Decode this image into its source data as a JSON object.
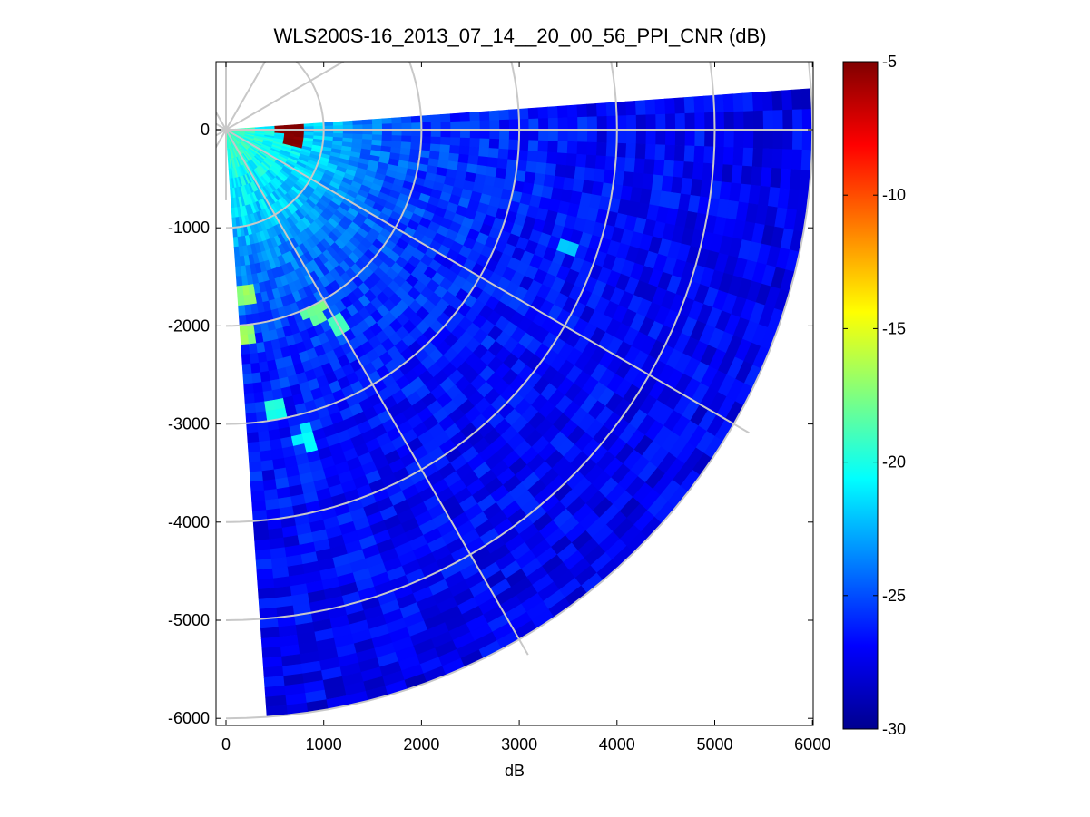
{
  "chart_data": {
    "type": "heatmap",
    "subtype": "polar-ppi-scan",
    "title": "WLS200S-16_2013_07_14__20_00_56_PPI_CNR (dB)",
    "xlabel": "dB",
    "ylabel": "",
    "xlim": [
      0,
      6000
    ],
    "ylim": [
      -6000,
      0
    ],
    "x_ticks": [
      0,
      1000,
      2000,
      3000,
      4000,
      5000,
      6000
    ],
    "y_ticks": [
      0,
      -1000,
      -2000,
      -3000,
      -4000,
      -5000,
      -6000
    ],
    "sector": {
      "azimuth_start_deg_from_north": 86,
      "azimuth_end_deg_from_north": 176,
      "max_range": 6000
    },
    "grid": true,
    "polar_grid": {
      "range_rings": [
        1000,
        2000,
        3000,
        4000,
        5000,
        6000
      ],
      "azimuth_lines_deg_from_north": [
        0,
        30,
        60,
        90,
        120,
        150
      ]
    },
    "colorbar": {
      "colormap": "jet",
      "range": [
        -30,
        -5
      ],
      "ticks": [
        -5,
        -10,
        -15,
        -20,
        -25,
        -30
      ],
      "location": "right"
    },
    "value_profile": [
      {
        "range": 100,
        "value": -19
      },
      {
        "range": 500,
        "value": -20.5
      },
      {
        "range": 1000,
        "value": -22
      },
      {
        "range": 1500,
        "value": -24
      },
      {
        "range": 2000,
        "value": -25.3
      },
      {
        "range": 3000,
        "value": -26.3
      },
      {
        "range": 4000,
        "value": -26.8
      },
      {
        "range": 5000,
        "value": -27
      },
      {
        "range": 6000,
        "value": -27.3
      }
    ],
    "hotspots": [
      {
        "x": 650,
        "y": 0,
        "value": -5
      },
      {
        "x": 700,
        "y": -70,
        "value": -5
      },
      {
        "x": 200,
        "y": -1700,
        "value": -17
      },
      {
        "x": 200,
        "y": -2050,
        "value": -17
      },
      {
        "x": 900,
        "y": -1850,
        "value": -18
      },
      {
        "x": 1150,
        "y": -2000,
        "value": -19
      },
      {
        "x": 500,
        "y": -2850,
        "value": -20
      },
      {
        "x": 800,
        "y": -3150,
        "value": -21
      },
      {
        "x": 3500,
        "y": -1200,
        "value": -22
      }
    ]
  }
}
